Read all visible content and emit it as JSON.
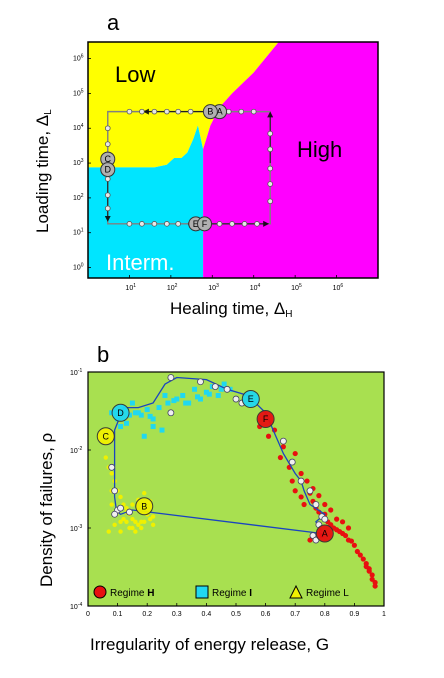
{
  "colors": {
    "low": "#ffff00",
    "intermediate": "#00e5ff",
    "high": "#ff00ff",
    "panel_b_background": "#a8e050",
    "regime_h": "#e81010",
    "regime_i": "#20d8f0",
    "regime_l": "#f0f000",
    "path_line_a": "#808080",
    "path_line_b": "#1a44c0"
  },
  "chart_data": [
    {
      "panel": "a",
      "type": "phase-diagram",
      "title": "a",
      "xlabel": "Healing time, Δ",
      "xlabel_sub": "H",
      "ylabel": "Loading time, Δ",
      "ylabel_sub": "L",
      "x_scale": "log",
      "y_scale": "log",
      "xlim": [
        1,
        10000000
      ],
      "ylim": [
        0.5,
        3000000
      ],
      "x_ticks": [
        {
          "v": 10,
          "e": "1"
        },
        {
          "v": 100,
          "e": "2"
        },
        {
          "v": 1000,
          "e": "3"
        },
        {
          "v": 10000,
          "e": "4"
        },
        {
          "v": 100000,
          "e": "5"
        },
        {
          "v": 1000000,
          "e": "6"
        }
      ],
      "y_ticks": [
        {
          "v": 1,
          "e": "0"
        },
        {
          "v": 10,
          "e": "1"
        },
        {
          "v": 100,
          "e": "2"
        },
        {
          "v": 1000,
          "e": "3"
        },
        {
          "v": 10000,
          "e": "4"
        },
        {
          "v": 100000,
          "e": "5"
        },
        {
          "v": 1000000,
          "e": "6"
        }
      ],
      "regions": [
        {
          "name": "Low",
          "label": "Low",
          "color": "yellow",
          "boundary": [
            [
              1,
              3000000
            ],
            [
              1,
              750
            ],
            [
              40,
              750
            ],
            [
              80,
              900
            ],
            [
              120,
              1400
            ],
            [
              180,
              1400
            ],
            [
              250,
              2000
            ],
            [
              350,
              5000
            ],
            [
              450,
              12000
            ],
            [
              600,
              2500
            ],
            [
              700,
              4500
            ],
            [
              900,
              12000
            ],
            [
              1500,
              40000
            ],
            [
              3000,
              100000
            ],
            [
              10000,
              400000
            ],
            [
              40000,
              3000000
            ]
          ]
        },
        {
          "name": "Intermediate",
          "label": "Interm.",
          "color": "cyan",
          "boundary": [
            [
              1,
              750
            ],
            [
              40,
              750
            ],
            [
              80,
              900
            ],
            [
              120,
              1400
            ],
            [
              180,
              1400
            ],
            [
              250,
              2000
            ],
            [
              350,
              5000
            ],
            [
              450,
              12000
            ],
            [
              600,
              2500
            ],
            [
              600,
              0.5
            ],
            [
              1,
              0.5
            ]
          ]
        },
        {
          "name": "High",
          "label": "High",
          "color": "magenta",
          "boundary": [
            [
              40000,
              3000000
            ],
            [
              10000,
              400000
            ],
            [
              3000,
              100000
            ],
            [
              1500,
              40000
            ],
            [
              900,
              12000
            ],
            [
              700,
              4500
            ],
            [
              600,
              2500
            ],
            [
              600,
              0.5
            ],
            [
              10000000,
              0.5
            ],
            [
              10000000,
              3000000
            ]
          ]
        }
      ],
      "cycle_path": [
        [
          25000,
          30000
        ],
        [
          1000,
          30000
        ],
        [
          3,
          30000
        ],
        [
          3,
          800
        ],
        [
          3,
          18
        ],
        [
          600,
          18
        ],
        [
          25000,
          18
        ],
        [
          25000,
          30000
        ]
      ],
      "path_points_top": [
        [
          10,
          30000
        ],
        [
          20,
          30000
        ],
        [
          40,
          30000
        ],
        [
          80,
          30000
        ],
        [
          150,
          30000
        ],
        [
          300,
          30000
        ],
        [
          2500,
          30000
        ],
        [
          5000,
          30000
        ],
        [
          10000,
          30000
        ]
      ],
      "path_points_left": [
        [
          3,
          10000
        ],
        [
          3,
          3500
        ],
        [
          3,
          1500
        ],
        [
          3,
          350
        ],
        [
          3,
          120
        ],
        [
          3,
          50
        ]
      ],
      "path_points_bottom": [
        [
          10,
          18
        ],
        [
          20,
          18
        ],
        [
          40,
          18
        ],
        [
          80,
          18
        ],
        [
          150,
          18
        ],
        [
          300,
          18
        ],
        [
          1500,
          18
        ],
        [
          3000,
          18
        ],
        [
          6000,
          18
        ],
        [
          12000,
          18
        ]
      ],
      "path_points_right": [
        [
          25000,
          80
        ],
        [
          25000,
          250
        ],
        [
          25000,
          700
        ],
        [
          25000,
          2500
        ],
        [
          25000,
          7000
        ]
      ],
      "labeled_points": [
        {
          "label": "A",
          "x": 1500,
          "y": 30000
        },
        {
          "label": "B",
          "x": 900,
          "y": 30000
        },
        {
          "label": "C",
          "x": 3,
          "y": 1300
        },
        {
          "label": "D",
          "x": 3,
          "y": 650
        },
        {
          "label": "E",
          "x": 400,
          "y": 18
        },
        {
          "label": "F",
          "x": 650,
          "y": 18
        }
      ]
    },
    {
      "panel": "b",
      "type": "scatter",
      "title": "b",
      "xlabel": "Irregularity of energy release, G",
      "ylabel": "Density of failures, ρ",
      "xlim": [
        0,
        1
      ],
      "ylim": [
        0.0001,
        0.1
      ],
      "x_scale": "linear",
      "y_scale": "log",
      "x_tick_labels": [
        "0",
        "0.1",
        "0.2",
        "0.3",
        "0.4",
        "0.5",
        "0.6",
        "0.7",
        "0.8",
        "0.9",
        "1"
      ],
      "y_ticks": [
        {
          "v": 0.0001,
          "e": "-4"
        },
        {
          "v": 0.001,
          "e": "-3"
        },
        {
          "v": 0.01,
          "e": "-2"
        },
        {
          "v": 0.1,
          "e": "-1"
        }
      ],
      "legend": [
        {
          "label": "Regime ",
          "bold": "H",
          "marker": "circle",
          "color": "red"
        },
        {
          "label": "Regime ",
          "bold": "I",
          "marker": "square",
          "color": "cyan"
        },
        {
          "label": "Regime L",
          "bold": "",
          "marker": "triangle",
          "color": "yellow"
        }
      ],
      "legend_position": "bottom",
      "series": [
        {
          "name": "Regime H",
          "marker": "circle",
          "color": "red",
          "x": [
            0.58,
            0.61,
            0.63,
            0.65,
            0.66,
            0.68,
            0.69,
            0.7,
            0.72,
            0.73,
            0.75,
            0.76,
            0.77,
            0.78,
            0.79,
            0.8,
            0.81,
            0.82,
            0.83,
            0.84,
            0.85,
            0.86,
            0.87,
            0.88,
            0.89,
            0.9,
            0.91,
            0.92,
            0.93,
            0.94,
            0.95,
            0.96,
            0.97,
            0.97,
            0.96,
            0.95,
            0.94,
            0.66,
            0.7,
            0.72,
            0.74,
            0.76,
            0.78,
            0.8,
            0.82,
            0.84,
            0.86,
            0.88,
            0.75,
            0.79
          ],
          "y": [
            0.02,
            0.015,
            0.018,
            0.008,
            0.011,
            0.006,
            0.004,
            0.003,
            0.0025,
            0.002,
            0.0028,
            0.0022,
            0.0018,
            0.0016,
            0.0014,
            0.0015,
            0.0012,
            0.0011,
            0.001,
            0.00095,
            0.0009,
            0.00085,
            0.0008,
            0.0007,
            0.00068,
            0.0006,
            0.0005,
            0.00045,
            0.0004,
            0.00035,
            0.0003,
            0.00025,
            0.0002,
            0.00018,
            0.00022,
            0.00028,
            0.00032,
            0.013,
            0.009,
            0.005,
            0.004,
            0.0032,
            0.0026,
            0.002,
            0.0017,
            0.0013,
            0.0012,
            0.001,
            0.0007,
            0.0008
          ]
        },
        {
          "name": "Regime I",
          "marker": "square",
          "color": "cyan",
          "x": [
            0.08,
            0.1,
            0.12,
            0.14,
            0.16,
            0.18,
            0.2,
            0.22,
            0.24,
            0.25,
            0.27,
            0.3,
            0.32,
            0.34,
            0.36,
            0.38,
            0.4,
            0.42,
            0.44,
            0.46,
            0.48,
            0.1,
            0.13,
            0.17,
            0.21,
            0.26,
            0.29,
            0.33,
            0.37,
            0.41,
            0.45,
            0.22,
            0.19,
            0.15,
            0.11
          ],
          "y": [
            0.03,
            0.03,
            0.035,
            0.028,
            0.03,
            0.028,
            0.033,
            0.025,
            0.035,
            0.018,
            0.04,
            0.045,
            0.05,
            0.04,
            0.06,
            0.045,
            0.055,
            0.065,
            0.05,
            0.07,
            0.06,
            0.025,
            0.022,
            0.03,
            0.027,
            0.05,
            0.043,
            0.04,
            0.048,
            0.052,
            0.06,
            0.02,
            0.015,
            0.04,
            0.02
          ]
        },
        {
          "name": "Regime L",
          "marker": "triangle",
          "color": "yellow",
          "x": [
            0.06,
            0.07,
            0.08,
            0.09,
            0.1,
            0.11,
            0.12,
            0.13,
            0.14,
            0.15,
            0.16,
            0.17,
            0.18,
            0.19,
            0.2,
            0.21,
            0.22,
            0.08,
            0.1,
            0.12,
            0.14,
            0.16,
            0.18,
            0.2,
            0.22,
            0.09,
            0.11,
            0.13,
            0.15,
            0.17,
            0.19,
            0.07,
            0.09,
            0.11,
            0.13,
            0.15,
            0.21,
            0.08
          ],
          "y": [
            0.008,
            0.006,
            0.005,
            0.004,
            0.003,
            0.0025,
            0.002,
            0.0018,
            0.0015,
            0.0013,
            0.0012,
            0.0011,
            0.001,
            0.0012,
            0.0015,
            0.0013,
            0.0011,
            0.002,
            0.0016,
            0.0013,
            0.001,
            0.0009,
            0.0012,
            0.0018,
            0.0014,
            0.0011,
            0.0012,
            0.0016,
            0.002,
            0.0023,
            0.0028,
            0.0009,
            0.0015,
            0.0009,
            0.0012,
            0.001,
            0.0022,
            0.003
          ]
        }
      ],
      "cycle_path_x": [
        0.79,
        0.77,
        0.8,
        0.75,
        0.73,
        0.72,
        0.7,
        0.66,
        0.6,
        0.54,
        0.47,
        0.4,
        0.3,
        0.26,
        0.22,
        0.17,
        0.12,
        0.09,
        0.09,
        0.09,
        0.095,
        0.1,
        0.11,
        0.15,
        0.79
      ],
      "cycle_path_y": [
        0.0009,
        0.0012,
        0.0015,
        0.002,
        0.003,
        0.004,
        0.005,
        0.009,
        0.03,
        0.05,
        0.06,
        0.08,
        0.085,
        0.07,
        0.04,
        0.035,
        0.035,
        0.018,
        0.006,
        0.0025,
        0.0018,
        0.0016,
        0.0015,
        0.0017,
        0.00085
      ],
      "path_points": [
        {
          "x": 0.28,
          "y": 0.085
        },
        {
          "x": 0.38,
          "y": 0.075
        },
        {
          "x": 0.43,
          "y": 0.065
        },
        {
          "x": 0.47,
          "y": 0.06
        },
        {
          "x": 0.28,
          "y": 0.03
        },
        {
          "x": 0.5,
          "y": 0.045
        },
        {
          "x": 0.52,
          "y": 0.04
        },
        {
          "x": 0.08,
          "y": 0.006
        },
        {
          "x": 0.09,
          "y": 0.003
        },
        {
          "x": 0.1,
          "y": 0.0017
        },
        {
          "x": 0.09,
          "y": 0.0015
        },
        {
          "x": 0.11,
          "y": 0.0018
        },
        {
          "x": 0.14,
          "y": 0.0016
        },
        {
          "x": 0.66,
          "y": 0.013
        },
        {
          "x": 0.69,
          "y": 0.007
        },
        {
          "x": 0.72,
          "y": 0.004
        },
        {
          "x": 0.75,
          "y": 0.003
        },
        {
          "x": 0.77,
          "y": 0.002
        },
        {
          "x": 0.79,
          "y": 0.0014
        },
        {
          "x": 0.8,
          "y": 0.0013
        },
        {
          "x": 0.78,
          "y": 0.0011
        },
        {
          "x": 0.76,
          "y": 0.0008
        },
        {
          "x": 0.77,
          "y": 0.0007
        }
      ],
      "labeled_points": [
        {
          "label": "A",
          "x": 0.8,
          "y": 0.00085,
          "color": "red"
        },
        {
          "label": "B",
          "x": 0.19,
          "y": 0.0019,
          "color": "yellow"
        },
        {
          "label": "C",
          "x": 0.06,
          "y": 0.015,
          "color": "yellow"
        },
        {
          "label": "D",
          "x": 0.11,
          "y": 0.03,
          "color": "cyan"
        },
        {
          "label": "E",
          "x": 0.55,
          "y": 0.045,
          "color": "cyan"
        },
        {
          "label": "F",
          "x": 0.6,
          "y": 0.025,
          "color": "red"
        }
      ]
    }
  ]
}
